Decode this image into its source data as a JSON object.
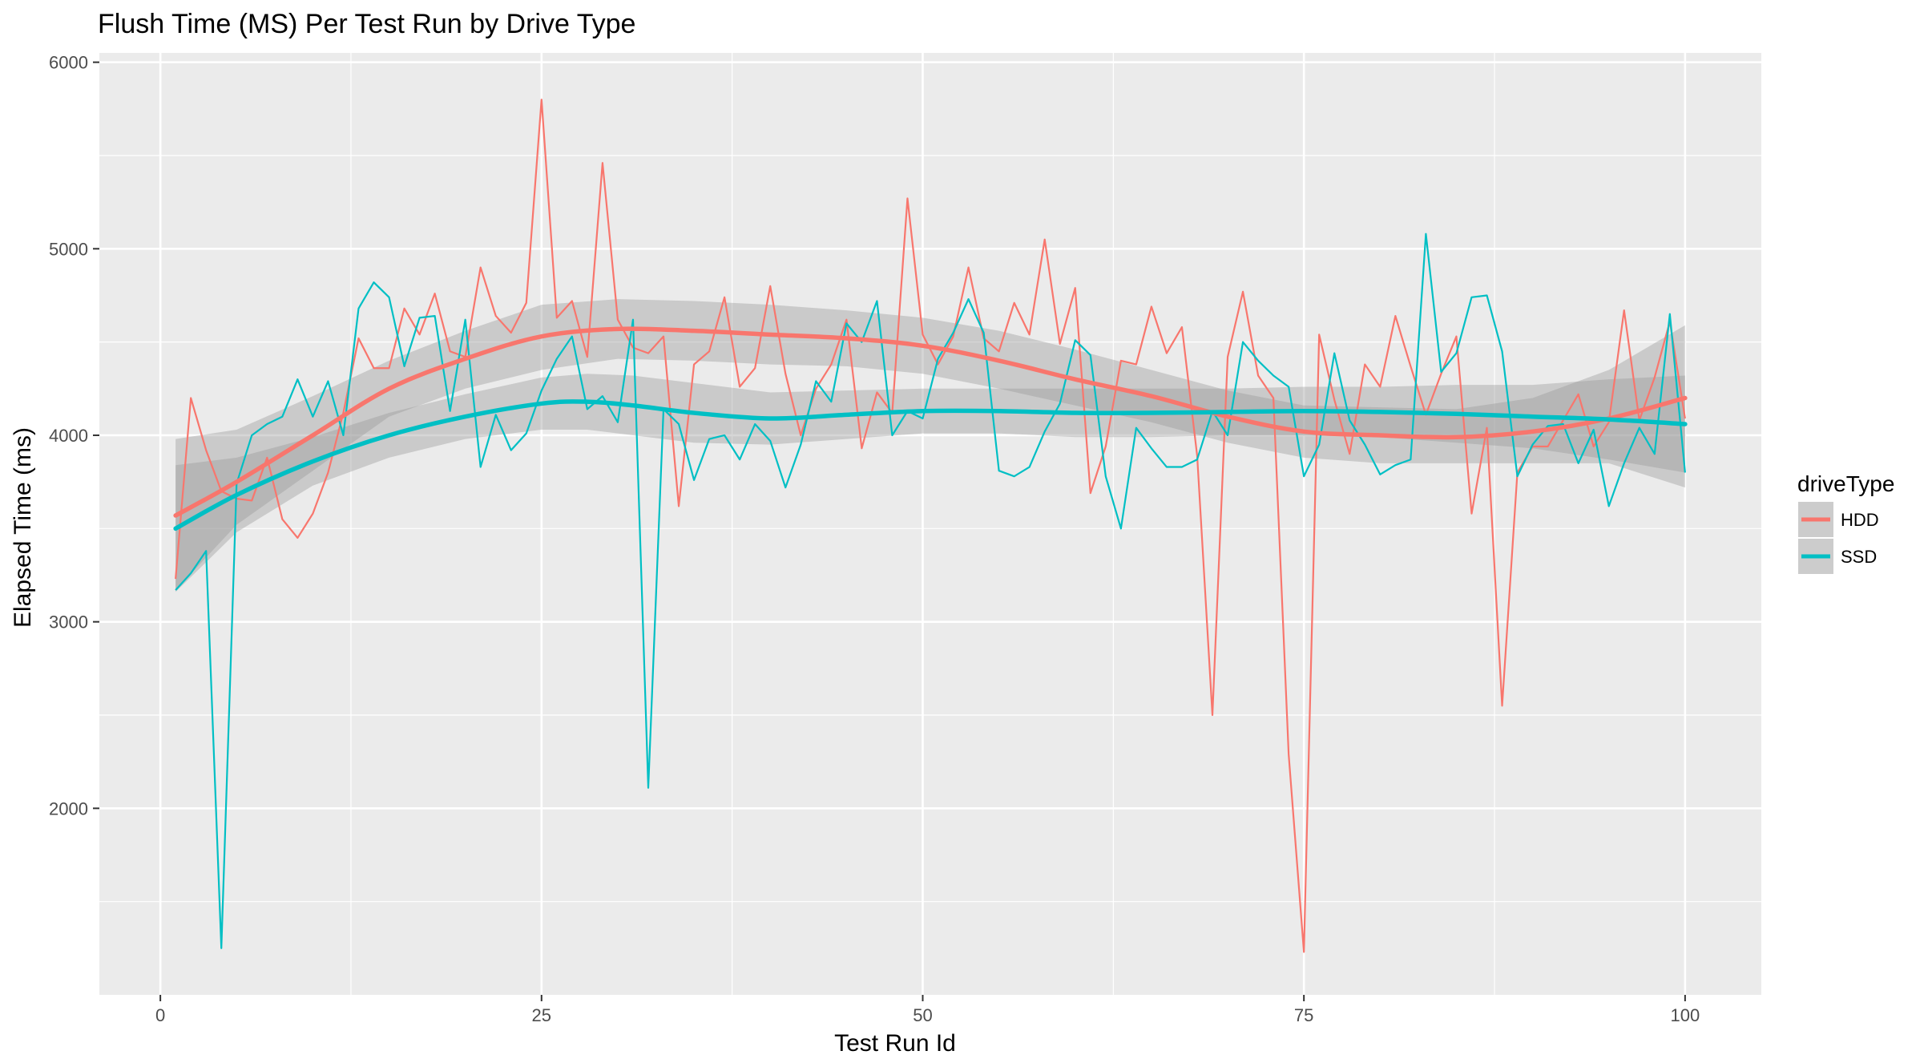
{
  "chart_data": {
    "type": "line",
    "title": "Flush Time (MS) Per Test Run by Drive Type",
    "xlabel": "Test Run Id",
    "ylabel": "Elapsed Time (ms)",
    "xlim": [
      -4,
      105
    ],
    "ylim": [
      1000,
      6050
    ],
    "x_ticks": [
      0,
      25,
      50,
      75,
      100
    ],
    "x_tick_labels": [
      "0",
      "25",
      "50",
      "75",
      "100"
    ],
    "y_ticks": [
      2000,
      3000,
      4000,
      5000,
      6000
    ],
    "y_tick_labels": [
      "2000",
      "3000",
      "4000",
      "5000",
      "6000"
    ],
    "grid": true,
    "legend": {
      "title": "driveType",
      "position": "right"
    },
    "series": [
      {
        "name": "HDD",
        "color": "#F8766D",
        "x": [
          1,
          2,
          3,
          4,
          5,
          6,
          7,
          8,
          9,
          10,
          11,
          12,
          13,
          14,
          15,
          16,
          17,
          18,
          19,
          20,
          21,
          22,
          23,
          24,
          25,
          26,
          27,
          28,
          29,
          30,
          31,
          32,
          33,
          34,
          35,
          36,
          37,
          38,
          39,
          40,
          41,
          42,
          43,
          44,
          45,
          46,
          47,
          48,
          49,
          50,
          51,
          52,
          53,
          54,
          55,
          56,
          57,
          58,
          59,
          60,
          61,
          62,
          63,
          64,
          65,
          66,
          67,
          68,
          69,
          70,
          71,
          72,
          73,
          74,
          75,
          76,
          77,
          78,
          79,
          80,
          81,
          82,
          83,
          84,
          85,
          86,
          87,
          88,
          89,
          90,
          91,
          92,
          93,
          94,
          95,
          96,
          97,
          98,
          99,
          100
        ],
        "y": [
          3230,
          4200,
          3920,
          3700,
          3660,
          3650,
          3880,
          3550,
          3450,
          3580,
          3800,
          4120,
          4520,
          4360,
          4360,
          4680,
          4540,
          4760,
          4450,
          4420,
          4900,
          4640,
          4550,
          4710,
          5800,
          4630,
          4720,
          4420,
          5460,
          4620,
          4470,
          4440,
          4530,
          3620,
          4380,
          4450,
          4740,
          4260,
          4360,
          4800,
          4330,
          4000,
          4250,
          4380,
          4620,
          3930,
          4230,
          4120,
          5270,
          4540,
          4380,
          4530,
          4900,
          4520,
          4450,
          4710,
          4540,
          5050,
          4490,
          4790,
          3690,
          3940,
          4400,
          4380,
          4690,
          4440,
          4580,
          3890,
          2500,
          4420,
          4770,
          4320,
          4200,
          2290,
          1230,
          4540,
          4190,
          3900,
          4380,
          4260,
          4640,
          4370,
          4110,
          4330,
          4530,
          3580,
          4040,
          2550,
          3800,
          3940,
          3940,
          4080,
          4220,
          3940,
          4070,
          4670,
          4080,
          4310,
          4610,
          4090
        ],
        "smooth": [
          [
            1,
            3570
          ],
          [
            5,
            3750
          ],
          [
            10,
            4000
          ],
          [
            15,
            4250
          ],
          [
            20,
            4410
          ],
          [
            25,
            4530
          ],
          [
            30,
            4570
          ],
          [
            35,
            4560
          ],
          [
            40,
            4540
          ],
          [
            45,
            4520
          ],
          [
            50,
            4480
          ],
          [
            55,
            4400
          ],
          [
            60,
            4300
          ],
          [
            65,
            4210
          ],
          [
            70,
            4100
          ],
          [
            75,
            4020
          ],
          [
            80,
            4000
          ],
          [
            85,
            3990
          ],
          [
            90,
            4020
          ],
          [
            95,
            4090
          ],
          [
            100,
            4200
          ]
        ],
        "ribbon_lower": [
          [
            1,
            3170
          ],
          [
            5,
            3520
          ],
          [
            10,
            3810
          ],
          [
            15,
            4100
          ],
          [
            20,
            4250
          ],
          [
            25,
            4350
          ],
          [
            30,
            4410
          ],
          [
            35,
            4400
          ],
          [
            40,
            4380
          ],
          [
            45,
            4370
          ],
          [
            50,
            4330
          ],
          [
            55,
            4250
          ],
          [
            60,
            4160
          ],
          [
            65,
            4070
          ],
          [
            70,
            3960
          ],
          [
            75,
            3880
          ],
          [
            80,
            3850
          ],
          [
            85,
            3850
          ],
          [
            90,
            3850
          ],
          [
            95,
            3850
          ],
          [
            100,
            3720
          ]
        ],
        "ribbon_upper": [
          [
            1,
            3980
          ],
          [
            5,
            4030
          ],
          [
            10,
            4210
          ],
          [
            15,
            4400
          ],
          [
            20,
            4560
          ],
          [
            25,
            4700
          ],
          [
            30,
            4730
          ],
          [
            35,
            4720
          ],
          [
            40,
            4700
          ],
          [
            45,
            4670
          ],
          [
            50,
            4630
          ],
          [
            55,
            4560
          ],
          [
            60,
            4460
          ],
          [
            65,
            4350
          ],
          [
            70,
            4240
          ],
          [
            75,
            4160
          ],
          [
            80,
            4150
          ],
          [
            85,
            4140
          ],
          [
            90,
            4200
          ],
          [
            95,
            4350
          ],
          [
            100,
            4590
          ]
        ]
      },
      {
        "name": "SSD",
        "color": "#00BFC4",
        "x": [
          1,
          2,
          3,
          4,
          5,
          6,
          7,
          8,
          9,
          10,
          11,
          12,
          13,
          14,
          15,
          16,
          17,
          18,
          19,
          20,
          21,
          22,
          23,
          24,
          25,
          26,
          27,
          28,
          29,
          30,
          31,
          32,
          33,
          34,
          35,
          36,
          37,
          38,
          39,
          40,
          41,
          42,
          43,
          44,
          45,
          46,
          47,
          48,
          49,
          50,
          51,
          52,
          53,
          54,
          55,
          56,
          57,
          58,
          59,
          60,
          61,
          62,
          63,
          64,
          65,
          66,
          67,
          68,
          69,
          70,
          71,
          72,
          73,
          74,
          75,
          76,
          77,
          78,
          79,
          80,
          81,
          82,
          83,
          84,
          85,
          86,
          87,
          88,
          89,
          90,
          91,
          92,
          93,
          94,
          95,
          96,
          97,
          98,
          99,
          100
        ],
        "y": [
          3170,
          3260,
          3380,
          1250,
          3740,
          4000,
          4060,
          4100,
          4300,
          4100,
          4290,
          4000,
          4680,
          4820,
          4740,
          4370,
          4630,
          4640,
          4130,
          4620,
          3830,
          4110,
          3920,
          4010,
          4240,
          4410,
          4530,
          4140,
          4210,
          4070,
          4620,
          2110,
          4140,
          4060,
          3760,
          3980,
          4000,
          3870,
          4060,
          3970,
          3720,
          3950,
          4290,
          4180,
          4600,
          4500,
          4720,
          4000,
          4130,
          4090,
          4410,
          4550,
          4730,
          4550,
          3810,
          3780,
          3830,
          4020,
          4170,
          4510,
          4430,
          3780,
          3500,
          4040,
          3930,
          3830,
          3830,
          3870,
          4130,
          4000,
          4500,
          4400,
          4320,
          4260,
          3780,
          3950,
          4440,
          4080,
          3950,
          3790,
          3840,
          3870,
          5080,
          4340,
          4440,
          4740,
          4750,
          4450,
          3780,
          3950,
          4050,
          4060,
          3850,
          4030,
          3620,
          3850,
          4040,
          3900,
          4650,
          3800
        ],
        "smooth": [
          [
            1,
            3500
          ],
          [
            5,
            3680
          ],
          [
            10,
            3860
          ],
          [
            15,
            4000
          ],
          [
            20,
            4100
          ],
          [
            25,
            4170
          ],
          [
            28,
            4180
          ],
          [
            31,
            4160
          ],
          [
            35,
            4120
          ],
          [
            40,
            4090
          ],
          [
            45,
            4110
          ],
          [
            50,
            4130
          ],
          [
            55,
            4130
          ],
          [
            60,
            4120
          ],
          [
            65,
            4120
          ],
          [
            70,
            4125
          ],
          [
            75,
            4130
          ],
          [
            80,
            4125
          ],
          [
            85,
            4115
          ],
          [
            90,
            4100
          ],
          [
            95,
            4085
          ],
          [
            100,
            4060
          ]
        ],
        "ribbon_lower": [
          [
            1,
            3160
          ],
          [
            5,
            3480
          ],
          [
            10,
            3730
          ],
          [
            15,
            3880
          ],
          [
            20,
            3980
          ],
          [
            25,
            4030
          ],
          [
            28,
            4030
          ],
          [
            31,
            4000
          ],
          [
            35,
            3960
          ],
          [
            40,
            3950
          ],
          [
            45,
            3980
          ],
          [
            50,
            4010
          ],
          [
            55,
            4010
          ],
          [
            60,
            3990
          ],
          [
            65,
            3990
          ],
          [
            70,
            4000
          ],
          [
            75,
            4000
          ],
          [
            80,
            3990
          ],
          [
            85,
            3960
          ],
          [
            90,
            3930
          ],
          [
            95,
            3870
          ],
          [
            100,
            3800
          ]
        ],
        "ribbon_upper": [
          [
            1,
            3840
          ],
          [
            5,
            3880
          ],
          [
            10,
            3990
          ],
          [
            15,
            4120
          ],
          [
            20,
            4220
          ],
          [
            25,
            4310
          ],
          [
            28,
            4330
          ],
          [
            31,
            4320
          ],
          [
            35,
            4280
          ],
          [
            40,
            4230
          ],
          [
            45,
            4240
          ],
          [
            50,
            4250
          ],
          [
            55,
            4250
          ],
          [
            60,
            4250
          ],
          [
            65,
            4250
          ],
          [
            70,
            4250
          ],
          [
            75,
            4260
          ],
          [
            80,
            4260
          ],
          [
            85,
            4270
          ],
          [
            90,
            4270
          ],
          [
            95,
            4300
          ],
          [
            100,
            4320
          ]
        ]
      }
    ]
  }
}
